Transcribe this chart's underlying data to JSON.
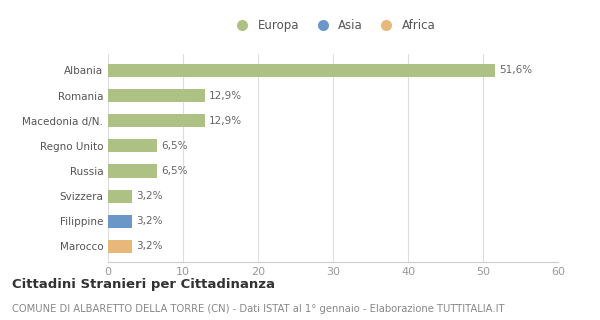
{
  "categories": [
    "Marocco",
    "Filippine",
    "Svizzera",
    "Russia",
    "Regno Unito",
    "Macedonia d/N.",
    "Romania",
    "Albania"
  ],
  "values": [
    3.2,
    3.2,
    3.2,
    6.5,
    6.5,
    12.9,
    12.9,
    51.6
  ],
  "labels": [
    "3,2%",
    "3,2%",
    "3,2%",
    "6,5%",
    "6,5%",
    "12,9%",
    "12,9%",
    "51,6%"
  ],
  "continents": [
    "Africa",
    "Asia",
    "Europa",
    "Europa",
    "Europa",
    "Europa",
    "Europa",
    "Europa"
  ],
  "colors": {
    "Europa": "#aec185",
    "Asia": "#6b96c8",
    "Africa": "#e8b87a"
  },
  "xlim": [
    0,
    60
  ],
  "xticks": [
    0,
    10,
    20,
    30,
    40,
    50,
    60
  ],
  "title": "Cittadini Stranieri per Cittadinanza",
  "subtitle": "COMUNE DI ALBARETTO DELLA TORRE (CN) - Dati ISTAT al 1° gennaio - Elaborazione TUTTITALIA.IT",
  "bg_color": "#ffffff",
  "bar_height": 0.52,
  "title_fontsize": 9.5,
  "subtitle_fontsize": 7.2,
  "axis_label_fontsize": 8,
  "bar_label_fontsize": 7.5,
  "tick_label_fontsize": 7.5,
  "legend_fontsize": 8.5
}
